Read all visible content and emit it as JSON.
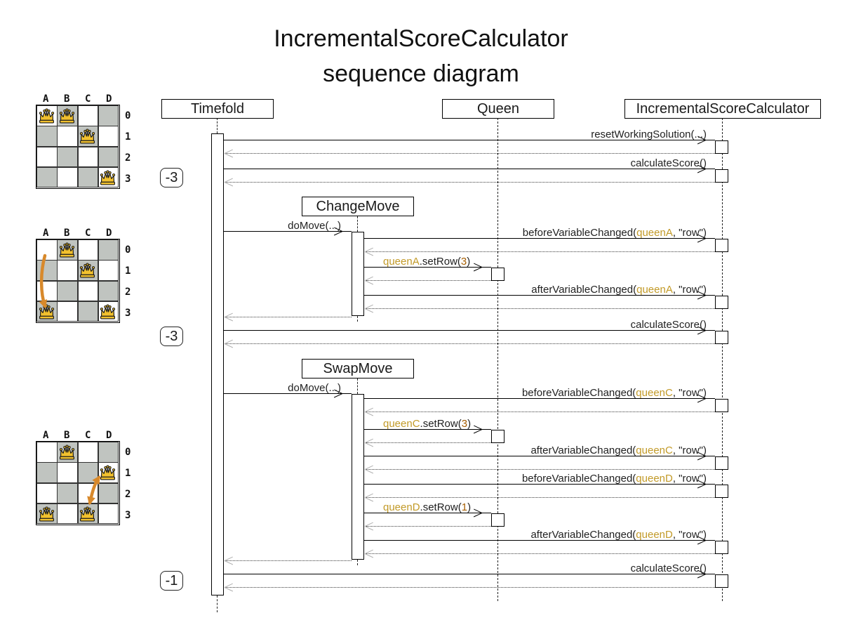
{
  "title": {
    "line1": "IncrementalScoreCalculator",
    "line2": "sequence diagram"
  },
  "colors": {
    "queen_ref_text": "#C29A28",
    "number_text": "#A65E00",
    "board_dark_cell": "#c0c4c0",
    "crown_fill": "#F2C12E",
    "board_arrow_orange": "#D8892B",
    "return_arrow_gray": "#b0b0b0",
    "line_black": "#000000"
  },
  "seq": {
    "participants": [
      {
        "name": "Timefold"
      },
      {
        "name": "Queen"
      },
      {
        "name": "IncrementalScoreCalculator"
      }
    ],
    "movers": [
      {
        "name": "ChangeMove"
      },
      {
        "name": "SwapMove"
      }
    ],
    "scores": [
      "-3",
      "-3",
      "-1"
    ],
    "messages": [
      {
        "parts": [
          {
            "t": "resetWorkingSolution(...)",
            "k": "plain"
          }
        ]
      },
      {
        "parts": [
          {
            "t": "calculateScore()",
            "k": "plain"
          }
        ]
      },
      {
        "parts": [
          {
            "t": "doMove(...)",
            "k": "plain"
          }
        ]
      },
      {
        "parts": [
          {
            "t": "beforeVariableChanged(",
            "k": "plain"
          },
          {
            "t": "queenA",
            "k": "queen"
          },
          {
            "t": ", \"row\")",
            "k": "plain"
          }
        ]
      },
      {
        "parts": [
          {
            "t": "queenA",
            "k": "queen"
          },
          {
            "t": ".setRow(",
            "k": "plain"
          },
          {
            "t": "3",
            "k": "num"
          },
          {
            "t": ")",
            "k": "plain"
          }
        ]
      },
      {
        "parts": [
          {
            "t": "afterVariableChanged(",
            "k": "plain"
          },
          {
            "t": "queenA",
            "k": "queen"
          },
          {
            "t": ", \"row\")",
            "k": "plain"
          }
        ]
      },
      {
        "parts": [
          {
            "t": "calculateScore()",
            "k": "plain"
          }
        ]
      },
      {
        "parts": [
          {
            "t": "doMove(...)",
            "k": "plain"
          }
        ]
      },
      {
        "parts": [
          {
            "t": "beforeVariableChanged(",
            "k": "plain"
          },
          {
            "t": "queenC",
            "k": "queen"
          },
          {
            "t": ", \"row\")",
            "k": "plain"
          }
        ]
      },
      {
        "parts": [
          {
            "t": "queenC",
            "k": "queen"
          },
          {
            "t": ".setRow(",
            "k": "plain"
          },
          {
            "t": "3",
            "k": "num"
          },
          {
            "t": ")",
            "k": "plain"
          }
        ]
      },
      {
        "parts": [
          {
            "t": "afterVariableChanged(",
            "k": "plain"
          },
          {
            "t": "queenC",
            "k": "queen"
          },
          {
            "t": ", \"row\")",
            "k": "plain"
          }
        ]
      },
      {
        "parts": [
          {
            "t": "beforeVariableChanged(",
            "k": "plain"
          },
          {
            "t": "queenD",
            "k": "queen"
          },
          {
            "t": ", \"row\")",
            "k": "plain"
          }
        ]
      },
      {
        "parts": [
          {
            "t": "queenD",
            "k": "queen"
          },
          {
            "t": ".setRow(",
            "k": "plain"
          },
          {
            "t": "1",
            "k": "num"
          },
          {
            "t": ")",
            "k": "plain"
          }
        ]
      },
      {
        "parts": [
          {
            "t": "afterVariableChanged(",
            "k": "plain"
          },
          {
            "t": "queenD",
            "k": "queen"
          },
          {
            "t": ", \"row\")",
            "k": "plain"
          }
        ]
      },
      {
        "parts": [
          {
            "t": "calculateScore()",
            "k": "plain"
          }
        ]
      }
    ]
  },
  "boards": [
    {
      "cols": [
        "A",
        "B",
        "C",
        "D"
      ],
      "rows": [
        "0",
        "1",
        "2",
        "3"
      ],
      "queens": [
        {
          "col": 0,
          "row": 0
        },
        {
          "col": 1,
          "row": 0
        },
        {
          "col": 2,
          "row": 1
        },
        {
          "col": 3,
          "row": 3
        }
      ],
      "move_arrow": "none"
    },
    {
      "cols": [
        "A",
        "B",
        "C",
        "D"
      ],
      "rows": [
        "0",
        "1",
        "2",
        "3"
      ],
      "queens": [
        {
          "col": 1,
          "row": 0
        },
        {
          "col": 2,
          "row": 1
        },
        {
          "col": 0,
          "row": 3
        },
        {
          "col": 3,
          "row": 3
        }
      ],
      "move_arrow": "column-A-row0-to-row3"
    },
    {
      "cols": [
        "A",
        "B",
        "C",
        "D"
      ],
      "rows": [
        "0",
        "1",
        "2",
        "3"
      ],
      "queens": [
        {
          "col": 1,
          "row": 0
        },
        {
          "col": 3,
          "row": 1
        },
        {
          "col": 0,
          "row": 3
        },
        {
          "col": 2,
          "row": 3
        }
      ],
      "move_arrow": "swap-D1-C3"
    }
  ]
}
